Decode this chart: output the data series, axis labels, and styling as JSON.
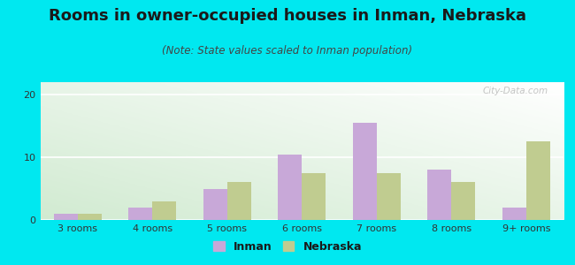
{
  "title": "Rooms in owner-occupied houses in Inman, Nebraska",
  "subtitle": "(Note: State values scaled to Inman population)",
  "categories": [
    "3 rooms",
    "4 rooms",
    "5 rooms",
    "6 rooms",
    "7 rooms",
    "8 rooms",
    "9+ rooms"
  ],
  "inman_values": [
    1.0,
    2.0,
    5.0,
    10.5,
    15.5,
    8.0,
    2.0
  ],
  "nebraska_values": [
    1.0,
    3.0,
    6.0,
    7.5,
    7.5,
    6.0,
    12.5
  ],
  "inman_color": "#c8a8d8",
  "nebraska_color": "#c0cc90",
  "background_outer": "#00e8f0",
  "ylim": [
    0,
    22
  ],
  "yticks": [
    0,
    10,
    20
  ],
  "bar_width": 0.32,
  "legend_inman": "Inman",
  "legend_nebraska": "Nebraska",
  "title_fontsize": 13,
  "subtitle_fontsize": 8.5,
  "tick_fontsize": 8,
  "legend_fontsize": 9,
  "title_color": "#1a1a1a",
  "subtitle_color": "#444444",
  "tick_color": "#333333",
  "watermark": "City-Data.com"
}
